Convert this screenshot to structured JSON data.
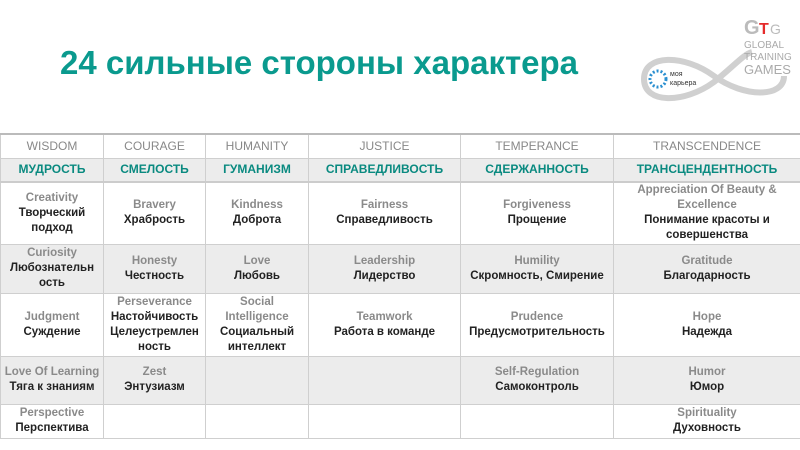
{
  "title": "24 сильные стороны характера",
  "logo": {
    "brand": "GTG",
    "lines": [
      "GLOBAL",
      "TRAINING",
      "GAMES"
    ],
    "partner": "моя карьера",
    "accent": "#e52b2b"
  },
  "columns": [
    {
      "en": "WISDOM",
      "ru": "МУДРОСТЬ"
    },
    {
      "en": "COURAGE",
      "ru": "СМЕЛОСТЬ"
    },
    {
      "en": "HUMANITY",
      "ru": "ГУМАНИЗМ"
    },
    {
      "en": "JUSTICE",
      "ru": "СПРАВЕДЛИВОСТЬ"
    },
    {
      "en": "TEMPERANCE",
      "ru": "СДЕРЖАННОСТЬ"
    },
    {
      "en": "TRANSCENDENCE",
      "ru": "ТРАНСЦЕНДЕНТНОСТЬ"
    }
  ],
  "rows": [
    [
      {
        "en": "Creativity",
        "ru": "Творческий подход"
      },
      {
        "en": "Bravery",
        "ru": "Храбрость"
      },
      {
        "en": "Kindness",
        "ru": "Доброта"
      },
      {
        "en": "Fairness",
        "ru": "Справедливость"
      },
      {
        "en": "Forgiveness",
        "ru": "Прощение"
      },
      {
        "en": "Appreciation Of Beauty & Excellence",
        "ru": "Понимание красоты и совершенства"
      }
    ],
    [
      {
        "en": "Curiosity",
        "ru": "Любознательн ость"
      },
      {
        "en": "Honesty",
        "ru": "Честность"
      },
      {
        "en": "Love",
        "ru": "Любовь"
      },
      {
        "en": "Leadership",
        "ru": "Лидерство"
      },
      {
        "en": "Humility",
        "ru": "Скромность, Смирение"
      },
      {
        "en": "Gratitude",
        "ru": "Благодарность"
      }
    ],
    [
      {
        "en": "Judgment",
        "ru": "Суждение"
      },
      {
        "en": "Perseverance",
        "ru": "Настойчивость Целеустремлен ность"
      },
      {
        "en": "Social Intelligence",
        "ru": "Социальный интеллект"
      },
      {
        "en": "Teamwork",
        "ru": "Работа в команде"
      },
      {
        "en": "Prudence",
        "ru": "Предусмотрительность"
      },
      {
        "en": "Hope",
        "ru": "Надежда"
      }
    ],
    [
      {
        "en": "Love Of Learning",
        "ru": "Тяга к знаниям"
      },
      {
        "en": "Zest",
        "ru": "Энтузиазм"
      },
      null,
      null,
      {
        "en": "Self-Regulation",
        "ru": "Самоконтроль"
      },
      {
        "en": "Humor",
        "ru": "Юмор"
      }
    ],
    [
      {
        "en": "Perspective",
        "ru": "Перспектива"
      },
      null,
      null,
      null,
      null,
      {
        "en": "Spirituality",
        "ru": "Духовность"
      }
    ]
  ]
}
